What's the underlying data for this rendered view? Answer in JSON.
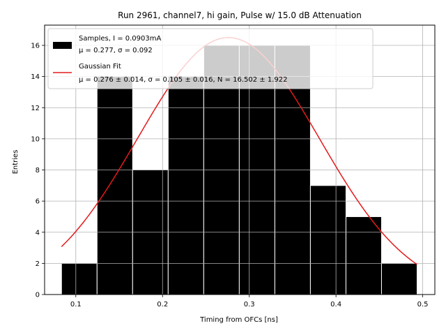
{
  "chart_data": {
    "type": "bar",
    "title": "Run 2961, channel7, hi gain, Pulse w/ 15.0 dB Attenuation",
    "xlabel": "Timing from OFCs [ns]",
    "ylabel": "Entries",
    "xlim": [
      0.064,
      0.514
    ],
    "ylim": [
      0,
      17.3
    ],
    "xticks": [
      "0.1",
      "0.2",
      "0.3",
      "0.4",
      "0.5"
    ],
    "xtick_values": [
      0.1,
      0.2,
      0.3,
      0.4,
      0.5
    ],
    "yticks": [
      "0",
      "2",
      "4",
      "6",
      "8",
      "10",
      "12",
      "14",
      "16"
    ],
    "ytick_values": [
      0,
      2,
      4,
      6,
      8,
      10,
      12,
      14,
      16
    ],
    "grid": true,
    "legend_position": "top-left",
    "bin_edges": [
      0.0835,
      0.1245,
      0.1655,
      0.2065,
      0.2475,
      0.2885,
      0.3295,
      0.3705,
      0.4115,
      0.4525,
      0.4935
    ],
    "values": [
      2,
      14,
      8,
      14,
      16,
      16,
      16,
      7,
      5,
      2
    ],
    "bar_color": "#000000",
    "fit_color": "#e31a1c",
    "fit": {
      "type": "gaussian",
      "mu": 0.276,
      "sigma": 0.105,
      "N": 16.502,
      "x_range": [
        0.0835,
        0.4935
      ]
    },
    "series": [
      {
        "name": "Samples, I = 0.0903mA",
        "stats": "μ = 0.277, σ = 0.092"
      },
      {
        "name": "Gaussian Fit",
        "stats": "μ = 0.276 ± 0.014, σ = 0.105 ± 0.016, N = 16.502 ± 1.922"
      }
    ]
  }
}
